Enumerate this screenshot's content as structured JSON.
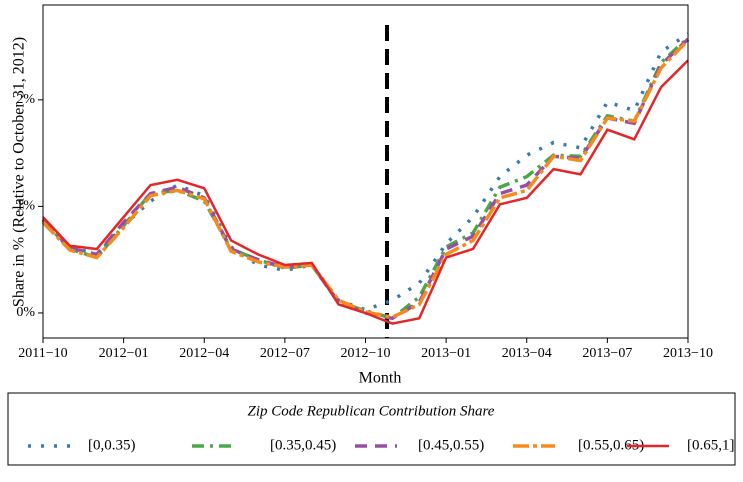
{
  "chart_data": {
    "type": "line",
    "x_label": "Month",
    "y_label": "Share in % (Relative to October 31, 2012)",
    "legend_title": "Zip Code Republican Contribution Share",
    "categories": [
      "2011−10",
      null,
      null,
      "2012−01",
      null,
      null,
      "2012−04",
      null,
      null,
      "2012−07",
      null,
      null,
      "2012−10",
      null,
      null,
      "2013−01",
      null,
      null,
      "2013−04",
      null,
      null,
      "2013−07",
      null,
      null,
      "2013−10"
    ],
    "ylim": [
      -0.235,
      2.89
    ],
    "yticks": [
      {
        "value": 0,
        "label": "0%"
      },
      {
        "value": 1,
        "label": "1%"
      },
      {
        "value": 2,
        "label": "2%"
      }
    ],
    "event_x": 12.8,
    "series": [
      {
        "name": "[0,0.35)",
        "color": "#3a78b4",
        "dash": "3,10",
        "values": [
          0.88,
          0.62,
          0.55,
          0.82,
          1.05,
          1.2,
          1.1,
          0.62,
          0.45,
          0.4,
          0.45,
          0.12,
          0.03,
          0.12,
          0.28,
          0.65,
          0.9,
          1.28,
          1.48,
          1.6,
          1.55,
          1.98,
          1.9,
          2.45,
          2.62
        ]
      },
      {
        "name": "[0.35,0.45)",
        "color": "#4aa84a",
        "dash": "12,6,3,6",
        "values": [
          0.87,
          0.6,
          0.52,
          0.82,
          1.12,
          1.15,
          1.05,
          0.6,
          0.5,
          0.42,
          0.45,
          0.1,
          0.02,
          -0.05,
          0.15,
          0.62,
          0.75,
          1.18,
          1.28,
          1.48,
          1.47,
          1.85,
          1.8,
          2.35,
          2.58
        ]
      },
      {
        "name": "[0.45,0.55)",
        "color": "#9550a4",
        "dash": "12,8",
        "values": [
          0.87,
          0.61,
          0.55,
          0.85,
          1.12,
          1.18,
          1.08,
          0.6,
          0.5,
          0.43,
          0.45,
          0.1,
          0.0,
          -0.05,
          0.1,
          0.6,
          0.72,
          1.12,
          1.2,
          1.47,
          1.45,
          1.83,
          1.78,
          2.33,
          2.57
        ]
      },
      {
        "name": "[0.55,0.65)",
        "color": "#f58a1e",
        "dash": "16,4,4,4",
        "values": [
          0.85,
          0.59,
          0.52,
          0.8,
          1.1,
          1.15,
          1.07,
          0.58,
          0.48,
          0.43,
          0.45,
          0.12,
          0.01,
          -0.04,
          0.08,
          0.55,
          0.68,
          1.08,
          1.15,
          1.47,
          1.43,
          1.83,
          1.8,
          2.3,
          2.56
        ]
      },
      {
        "name": "[0.65,1]",
        "color": "#e3262a",
        "dash": "",
        "values": [
          0.9,
          0.63,
          0.6,
          0.9,
          1.2,
          1.25,
          1.17,
          0.68,
          0.55,
          0.45,
          0.47,
          0.08,
          0.0,
          -0.1,
          -0.05,
          0.52,
          0.6,
          1.02,
          1.08,
          1.35,
          1.3,
          1.72,
          1.63,
          2.12,
          2.37
        ]
      }
    ]
  }
}
